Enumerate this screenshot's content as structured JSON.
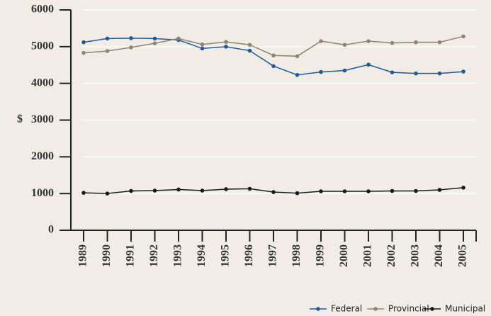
{
  "chart_data": {
    "type": "line",
    "y_label": "$",
    "categories": [
      "1989",
      "1990",
      "1991",
      "1992",
      "1993",
      "1994",
      "1995",
      "1996",
      "1997",
      "1998",
      "1999",
      "2000",
      "2001",
      "2002",
      "2003",
      "2004",
      "2005"
    ],
    "series": [
      {
        "name": "Federal",
        "color": "#1f5a96",
        "values": [
          5120,
          5220,
          5230,
          5220,
          5180,
          4950,
          5000,
          4890,
          4470,
          4230,
          4310,
          4350,
          4510,
          4300,
          4270,
          4270,
          4320
        ]
      },
      {
        "name": "Provincial",
        "color": "#8f8373",
        "values": [
          4830,
          4880,
          4980,
          5090,
          5220,
          5060,
          5130,
          5050,
          4760,
          4740,
          5150,
          5050,
          5150,
          5100,
          5120,
          5120,
          5280
        ]
      },
      {
        "name": "Municipal",
        "color": "#1a1a1a",
        "values": [
          1020,
          1000,
          1070,
          1080,
          1110,
          1080,
          1120,
          1130,
          1040,
          1010,
          1060,
          1060,
          1060,
          1070,
          1070,
          1100,
          1160
        ]
      }
    ],
    "ylim": [
      0,
      6000
    ],
    "yticks": [
      0,
      1000,
      2000,
      3000,
      4000,
      5000,
      6000
    ],
    "grid": true,
    "legend": "bottom-right"
  }
}
